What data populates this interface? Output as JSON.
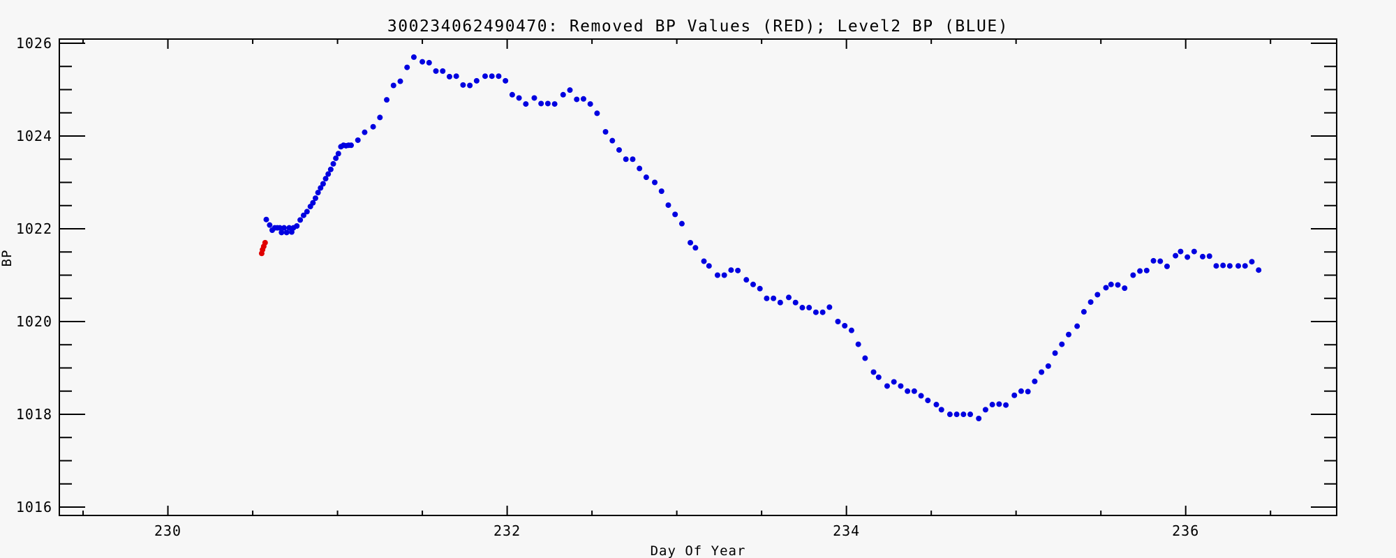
{
  "window": {
    "background": "#f7f7f7"
  },
  "chart_data": {
    "type": "scatter",
    "title": "300234062490470: Removed BP Values (RED); Level2 BP (BLUE)",
    "xlabel": "Day Of Year",
    "ylabel": "BP",
    "xlim": [
      229.36,
      236.89
    ],
    "ylim": [
      1015.82,
      1026.09
    ],
    "x_major_ticks": [
      230,
      232,
      234,
      236
    ],
    "x_minor_step": 0.5,
    "y_major_ticks": [
      1016,
      1018,
      1020,
      1022,
      1024,
      1026
    ],
    "y_minor_step": 0.5,
    "grid": false,
    "legend_position": "none",
    "axis_color": "#000000",
    "marker_radius": 4,
    "series": [
      {
        "name": "Level2 BP",
        "color": "#0000e0",
        "marker": "dot",
        "points": [
          [
            230.58,
            1022.2
          ],
          [
            230.6,
            1022.08
          ],
          [
            230.615,
            1021.97
          ],
          [
            230.63,
            1022.02
          ],
          [
            230.645,
            1022.02
          ],
          [
            230.66,
            1022.02
          ],
          [
            230.67,
            1021.92
          ],
          [
            230.685,
            1022.02
          ],
          [
            230.7,
            1021.92
          ],
          [
            230.715,
            1022.02
          ],
          [
            230.73,
            1021.93
          ],
          [
            230.74,
            1022.02
          ],
          [
            230.76,
            1022.06
          ],
          [
            230.78,
            1022.19
          ],
          [
            230.8,
            1022.29
          ],
          [
            230.82,
            1022.37
          ],
          [
            230.84,
            1022.48
          ],
          [
            230.855,
            1022.56
          ],
          [
            230.87,
            1022.66
          ],
          [
            230.885,
            1022.78
          ],
          [
            230.9,
            1022.88
          ],
          [
            230.915,
            1022.97
          ],
          [
            230.93,
            1023.08
          ],
          [
            230.945,
            1023.18
          ],
          [
            230.96,
            1023.28
          ],
          [
            230.975,
            1023.4
          ],
          [
            230.99,
            1023.52
          ],
          [
            231.005,
            1023.62
          ],
          [
            231.02,
            1023.77
          ],
          [
            231.035,
            1023.8
          ],
          [
            231.05,
            1023.79
          ],
          [
            231.065,
            1023.8
          ],
          [
            231.08,
            1023.8
          ],
          [
            231.12,
            1023.91
          ],
          [
            231.16,
            1024.08
          ],
          [
            231.21,
            1024.2
          ],
          [
            231.25,
            1024.4
          ],
          [
            231.29,
            1024.78
          ],
          [
            231.33,
            1025.09
          ],
          [
            231.37,
            1025.18
          ],
          [
            231.41,
            1025.48
          ],
          [
            231.45,
            1025.7
          ],
          [
            231.5,
            1025.6
          ],
          [
            231.54,
            1025.58
          ],
          [
            231.58,
            1025.4
          ],
          [
            231.62,
            1025.4
          ],
          [
            231.66,
            1025.28
          ],
          [
            231.7,
            1025.29
          ],
          [
            231.74,
            1025.1
          ],
          [
            231.78,
            1025.09
          ],
          [
            231.82,
            1025.19
          ],
          [
            231.87,
            1025.29
          ],
          [
            231.91,
            1025.29
          ],
          [
            231.95,
            1025.29
          ],
          [
            231.99,
            1025.19
          ],
          [
            232.03,
            1024.89
          ],
          [
            232.07,
            1024.82
          ],
          [
            232.11,
            1024.69
          ],
          [
            232.16,
            1024.82
          ],
          [
            232.2,
            1024.7
          ],
          [
            232.24,
            1024.7
          ],
          [
            232.28,
            1024.69
          ],
          [
            232.33,
            1024.89
          ],
          [
            232.37,
            1024.99
          ],
          [
            232.41,
            1024.79
          ],
          [
            232.45,
            1024.8
          ],
          [
            232.49,
            1024.69
          ],
          [
            232.53,
            1024.49
          ],
          [
            232.58,
            1024.09
          ],
          [
            232.62,
            1023.9
          ],
          [
            232.66,
            1023.7
          ],
          [
            232.7,
            1023.5
          ],
          [
            232.74,
            1023.5
          ],
          [
            232.78,
            1023.3
          ],
          [
            232.82,
            1023.11
          ],
          [
            232.87,
            1023.0
          ],
          [
            232.91,
            1022.81
          ],
          [
            232.95,
            1022.51
          ],
          [
            232.99,
            1022.31
          ],
          [
            233.03,
            1022.11
          ],
          [
            233.08,
            1021.7
          ],
          [
            233.11,
            1021.59
          ],
          [
            233.16,
            1021.3
          ],
          [
            233.19,
            1021.2
          ],
          [
            233.24,
            1021.0
          ],
          [
            233.28,
            1021.0
          ],
          [
            233.32,
            1021.11
          ],
          [
            233.36,
            1021.1
          ],
          [
            233.41,
            1020.9
          ],
          [
            233.45,
            1020.8
          ],
          [
            233.49,
            1020.71
          ],
          [
            233.53,
            1020.5
          ],
          [
            233.57,
            1020.5
          ],
          [
            233.61,
            1020.41
          ],
          [
            233.66,
            1020.52
          ],
          [
            233.7,
            1020.41
          ],
          [
            233.74,
            1020.3
          ],
          [
            233.78,
            1020.3
          ],
          [
            233.82,
            1020.2
          ],
          [
            233.86,
            1020.2
          ],
          [
            233.9,
            1020.31
          ],
          [
            233.95,
            1020.0
          ],
          [
            233.99,
            1019.91
          ],
          [
            234.03,
            1019.81
          ],
          [
            234.07,
            1019.51
          ],
          [
            234.11,
            1019.21
          ],
          [
            234.16,
            1018.91
          ],
          [
            234.19,
            1018.8
          ],
          [
            234.24,
            1018.61
          ],
          [
            234.28,
            1018.7
          ],
          [
            234.32,
            1018.61
          ],
          [
            234.36,
            1018.5
          ],
          [
            234.4,
            1018.5
          ],
          [
            234.44,
            1018.4
          ],
          [
            234.48,
            1018.3
          ],
          [
            234.53,
            1018.21
          ],
          [
            234.56,
            1018.1
          ],
          [
            234.61,
            1018.0
          ],
          [
            234.65,
            1018.0
          ],
          [
            234.69,
            1018.0
          ],
          [
            234.73,
            1018.0
          ],
          [
            234.78,
            1017.91
          ],
          [
            234.82,
            1018.1
          ],
          [
            234.86,
            1018.21
          ],
          [
            234.9,
            1018.22
          ],
          [
            234.94,
            1018.2
          ],
          [
            234.99,
            1018.41
          ],
          [
            235.03,
            1018.5
          ],
          [
            235.07,
            1018.49
          ],
          [
            235.11,
            1018.71
          ],
          [
            235.15,
            1018.91
          ],
          [
            235.19,
            1019.04
          ],
          [
            235.23,
            1019.32
          ],
          [
            235.27,
            1019.51
          ],
          [
            235.31,
            1019.72
          ],
          [
            235.36,
            1019.9
          ],
          [
            235.4,
            1020.21
          ],
          [
            235.44,
            1020.42
          ],
          [
            235.48,
            1020.58
          ],
          [
            235.53,
            1020.73
          ],
          [
            235.56,
            1020.8
          ],
          [
            235.6,
            1020.79
          ],
          [
            235.64,
            1020.72
          ],
          [
            235.69,
            1021.0
          ],
          [
            235.73,
            1021.09
          ],
          [
            235.77,
            1021.1
          ],
          [
            235.81,
            1021.31
          ],
          [
            235.85,
            1021.3
          ],
          [
            235.89,
            1021.19
          ],
          [
            235.94,
            1021.42
          ],
          [
            235.97,
            1021.51
          ],
          [
            236.01,
            1021.39
          ],
          [
            236.05,
            1021.51
          ],
          [
            236.1,
            1021.4
          ],
          [
            236.14,
            1021.41
          ],
          [
            236.18,
            1021.2
          ],
          [
            236.22,
            1021.21
          ],
          [
            236.26,
            1021.2
          ],
          [
            236.31,
            1021.2
          ],
          [
            236.35,
            1021.2
          ],
          [
            236.39,
            1021.29
          ],
          [
            236.43,
            1021.11
          ]
        ]
      },
      {
        "name": "Removed BP Values",
        "color": "#e00000",
        "marker": "dot",
        "points": [
          [
            230.553,
            1021.47
          ],
          [
            230.558,
            1021.55
          ],
          [
            230.565,
            1021.62
          ],
          [
            230.573,
            1021.7
          ]
        ]
      }
    ]
  }
}
